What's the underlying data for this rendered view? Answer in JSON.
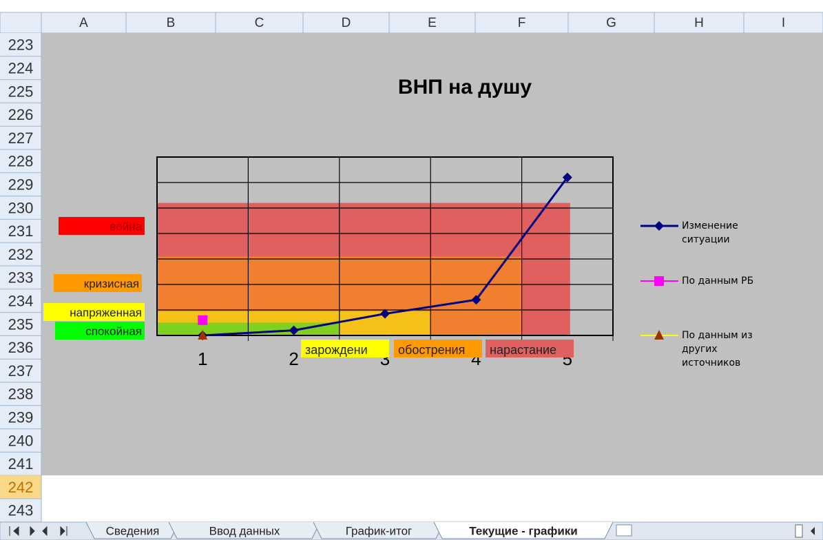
{
  "columns": [
    "A",
    "B",
    "C",
    "D",
    "E",
    "F",
    "G",
    "H",
    "I"
  ],
  "rows": [
    223,
    224,
    225,
    226,
    227,
    228,
    229,
    230,
    231,
    232,
    233,
    234,
    235,
    236,
    237,
    238,
    239,
    240,
    241,
    242,
    243
  ],
  "selected_row": 242,
  "chart_data": {
    "type": "line",
    "title": "ВНП на душу",
    "categories": [
      "1",
      "2",
      "3",
      "4",
      "5"
    ],
    "ylim": [
      0,
      7
    ],
    "yticks": [
      0,
      1,
      2,
      3,
      4,
      5,
      6,
      7
    ],
    "grid": true,
    "series": [
      {
        "name": "Изменение ситуации",
        "color": "#000080",
        "marker": "diamond",
        "values": [
          0,
          0.2,
          0.85,
          1.4,
          6.2
        ]
      },
      {
        "name": "По данным РБ",
        "color": "#ff00ff",
        "marker": "square",
        "values": [
          0.6,
          null,
          null,
          null,
          null
        ]
      },
      {
        "name": "По данным из других источников",
        "color": "#993300",
        "marker": "triangle",
        "values": [
          0,
          null,
          null,
          null,
          null
        ]
      }
    ],
    "bands": [
      {
        "color": "#e06060",
        "x_end": 4.53,
        "y_top": 5.2
      },
      {
        "color": "#f07f30",
        "x_end": 4.0,
        "y_top": 3.1
      },
      {
        "color": "#f5c018",
        "x_end": 3.0,
        "y_top": 0.95
      },
      {
        "color": "#80d020",
        "x_end": 2.0,
        "y_top": 0.5
      }
    ],
    "y_zones": [
      {
        "label": "война",
        "color": "#ff0000"
      },
      {
        "label": "кризисная",
        "color": "#ff9900"
      },
      {
        "label": "напряженная",
        "color": "#ffff00"
      },
      {
        "label": "спокойная",
        "color": "#00ff00"
      }
    ],
    "x_zones": [
      {
        "label": "зарождени",
        "color": "#ffff00"
      },
      {
        "label": "обострения",
        "color": "#ff9900"
      },
      {
        "label": "нарастание",
        "color": "#e06060"
      }
    ]
  },
  "tabs": [
    "Сведения",
    "Ввод данных",
    "График-итог",
    "Текущие - графики"
  ],
  "active_tab": 3
}
